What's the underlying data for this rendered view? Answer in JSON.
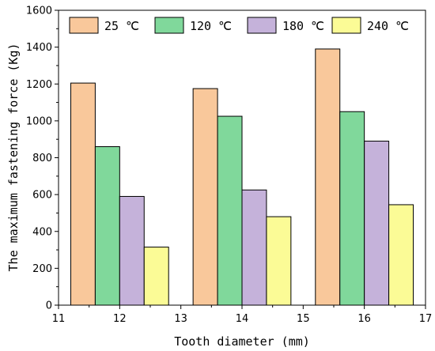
{
  "chart_data": {
    "type": "bar",
    "title": "",
    "xlabel": "Tooth diameter (mm)",
    "ylabel": "The maximum fastening force (Kg)",
    "xlim": [
      11,
      17
    ],
    "ylim": [
      0,
      1600
    ],
    "x_ticks": [
      "11",
      "12",
      "13",
      "14",
      "15",
      "16",
      "17"
    ],
    "y_ticks": [
      "0",
      "200",
      "400",
      "600",
      "800",
      "1000",
      "1200",
      "1400",
      "1600"
    ],
    "categories": [
      "12",
      "14",
      "16"
    ],
    "category_x": [
      12,
      14,
      16
    ],
    "series": [
      {
        "name": "25 ℃",
        "color": "#f9c89b",
        "values": [
          1205,
          1175,
          1390
        ]
      },
      {
        "name": "120 ℃",
        "color": "#80d89b",
        "values": [
          860,
          1025,
          1050
        ]
      },
      {
        "name": "180 ℃",
        "color": "#c5b2da",
        "values": [
          590,
          625,
          890
        ]
      },
      {
        "name": "240 ℃",
        "color": "#fbfb96",
        "values": [
          315,
          480,
          545
        ]
      }
    ],
    "grid": false,
    "legend_position": "top"
  }
}
